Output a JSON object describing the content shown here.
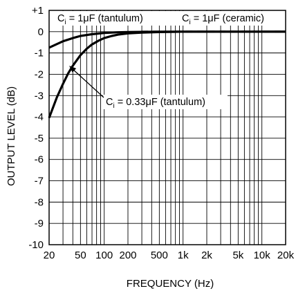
{
  "chart_data": {
    "type": "line",
    "xlabel": "FREQUENCY (Hz)",
    "ylabel": "OUTPUT LEVEL (dB)",
    "x_scale": "log",
    "xlim": [
      20,
      20000
    ],
    "ylim": [
      -10,
      1
    ],
    "grid": true,
    "x_ticks": [
      {
        "value": 20,
        "label": "20"
      },
      {
        "value": 50,
        "label": "50"
      },
      {
        "value": 100,
        "label": "100"
      },
      {
        "value": 200,
        "label": "200"
      },
      {
        "value": 500,
        "label": "500"
      },
      {
        "value": 1000,
        "label": "1k"
      },
      {
        "value": 2000,
        "label": "2k"
      },
      {
        "value": 5000,
        "label": "5k"
      },
      {
        "value": 10000,
        "label": "10k"
      },
      {
        "value": 20000,
        "label": "20k"
      }
    ],
    "y_ticks": [
      {
        "value": 1,
        "label": "+1"
      },
      {
        "value": 0,
        "label": "0"
      },
      {
        "value": -1,
        "label": "-1"
      },
      {
        "value": -2,
        "label": "-2"
      },
      {
        "value": -3,
        "label": "-3"
      },
      {
        "value": -4,
        "label": "-4"
      },
      {
        "value": -5,
        "label": "-5"
      },
      {
        "value": -6,
        "label": "-6"
      },
      {
        "value": -7,
        "label": "-7"
      },
      {
        "value": -8,
        "label": "-8"
      },
      {
        "value": -9,
        "label": "-9"
      },
      {
        "value": -10,
        "label": "-10"
      }
    ],
    "series": [
      {
        "name": "Ci = 1μF (tantulum)",
        "style": "solid",
        "x": [
          20,
          30,
          40,
          50,
          70,
          100,
          150,
          200,
          300,
          500,
          1000,
          2000,
          5000,
          10000,
          20000
        ],
        "y": [
          -0.75,
          -0.45,
          -0.3,
          -0.2,
          -0.12,
          -0.06,
          -0.03,
          -0.02,
          -0.01,
          0,
          0,
          0,
          0,
          0,
          0
        ]
      },
      {
        "name": "Ci = 1μF (ceramic)",
        "style": "dashed",
        "x": [
          300,
          500,
          1000,
          2000,
          5000,
          10000,
          20000
        ],
        "y": [
          0,
          0,
          0,
          0,
          0,
          0,
          0
        ]
      },
      {
        "name": "Ci = 0.33μF (tantulum)",
        "style": "solid",
        "x": [
          20,
          25,
          30,
          35,
          40,
          50,
          60,
          70,
          85,
          100,
          125,
          150,
          200,
          300,
          500,
          1000,
          2000,
          5000,
          10000,
          20000
        ],
        "y": [
          -4.05,
          -3.1,
          -2.45,
          -1.95,
          -1.6,
          -1.1,
          -0.8,
          -0.6,
          -0.42,
          -0.3,
          -0.2,
          -0.14,
          -0.08,
          -0.04,
          -0.02,
          0,
          0,
          0,
          0,
          0
        ]
      }
    ],
    "annotations": [
      {
        "id": "label_1u_tant",
        "base": "C",
        "sub": "i",
        "rest": " = 1μF (tantulum)"
      },
      {
        "id": "label_1u_cer",
        "base": "C",
        "sub": "i",
        "rest": " = 1μF (ceramic)"
      },
      {
        "id": "label_033u_tant",
        "base": "C",
        "sub": "i",
        "rest": " = 0.33μF (tantulum)"
      }
    ]
  }
}
